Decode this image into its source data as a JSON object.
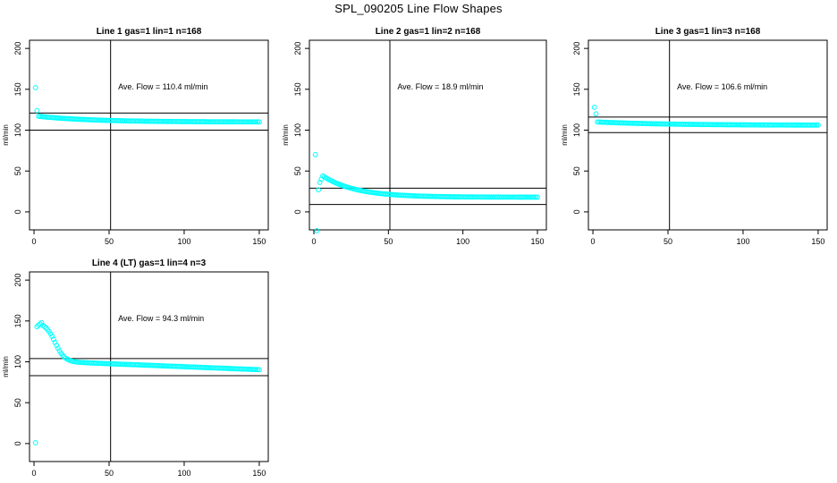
{
  "title": "SPL_090205  Line Flow Shapes",
  "colors": {
    "points": "#00ffff",
    "axes": "#000000",
    "background": "#ffffff"
  },
  "chart_data": [
    {
      "type": "scatter",
      "title": "Line 1 gas=1 lin=1 n=168",
      "ylabel": "ml/min",
      "xlabel": "",
      "xlim": [
        -3,
        156
      ],
      "ylim": [
        -22,
        210
      ],
      "xticks": [
        0,
        50,
        100,
        150
      ],
      "yticks": [
        0,
        50,
        100,
        150,
        200
      ],
      "annotation": "Ave. Flow =  110.4  ml/min",
      "vline": 51,
      "hlines": [
        121,
        100
      ],
      "curve": {
        "start": 152,
        "first": 124,
        "knee": 117,
        "end": 110,
        "n": 150,
        "decay": 6,
        "peak_at": 0,
        "rise": 0
      }
    },
    {
      "type": "scatter",
      "title": "Line 2 gas=1 lin=2 n=168",
      "ylabel": "ml/min",
      "xlabel": "",
      "xlim": [
        -3,
        156
      ],
      "ylim": [
        -22,
        210
      ],
      "xticks": [
        0,
        50,
        100,
        150
      ],
      "yticks": [
        0,
        50,
        100,
        150,
        200
      ],
      "annotation": "Ave. Flow =  18.9  ml/min",
      "vline": 51,
      "hlines": [
        29,
        9
      ],
      "curve": {
        "start": 70,
        "first": -23,
        "knee": 44,
        "end": 18,
        "n": 150,
        "decay": 22,
        "peak_at": 6,
        "rise": 1
      }
    },
    {
      "type": "scatter",
      "title": "Line 3 gas=1 lin=3 n=168",
      "ylabel": "ml/min",
      "xlabel": "",
      "xlim": [
        -3,
        156
      ],
      "ylim": [
        -22,
        210
      ],
      "xticks": [
        0,
        50,
        100,
        150
      ],
      "yticks": [
        0,
        50,
        100,
        150,
        200
      ],
      "annotation": "Ave. Flow =  106.6  ml/min",
      "vline": 51,
      "hlines": [
        116,
        97
      ],
      "curve": {
        "start": 128,
        "first": 120,
        "knee": 110,
        "end": 106,
        "n": 150,
        "decay": 8,
        "peak_at": 0,
        "rise": 0
      }
    },
    {
      "type": "scatter",
      "title": "Line 4 (LT) gas=1 lin=4 n=3",
      "ylabel": "ml/min",
      "xlabel": "",
      "xlim": [
        -3,
        156
      ],
      "ylim": [
        -22,
        210
      ],
      "xticks": [
        0,
        50,
        100,
        150
      ],
      "yticks": [
        0,
        50,
        100,
        150,
        200
      ],
      "annotation": "Ave. Flow =  94.3  ml/min",
      "vline": 51,
      "hlines": [
        104,
        83
      ],
      "curve": {
        "start": 148,
        "first": 1,
        "knee": 101,
        "end": 91,
        "n": 150,
        "decay": 6,
        "peak_at": 5,
        "rise": 2
      }
    }
  ]
}
